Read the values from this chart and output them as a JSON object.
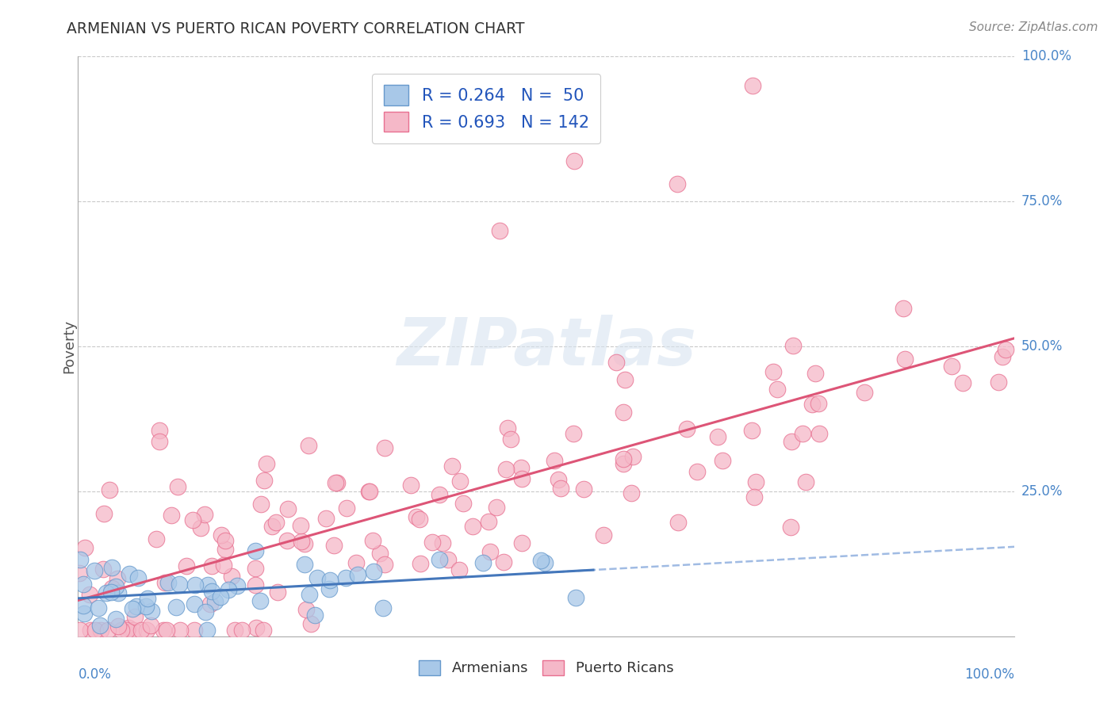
{
  "title": "ARMENIAN VS PUERTO RICAN POVERTY CORRELATION CHART",
  "source": "Source: ZipAtlas.com",
  "ylabel": "Poverty",
  "legend1_label": "R = 0.264   N =  50",
  "legend2_label": "R = 0.693   N = 142",
  "armenian_color": "#a8c8e8",
  "armenian_edge": "#6699cc",
  "puerto_rican_color": "#f5b8c8",
  "puerto_rican_edge": "#e87090",
  "line_armenian": "#4477bb",
  "line_armenian_dash": "#88aadd",
  "line_puerto_rican": "#dd5577",
  "watermark_text": "ZIPatlas",
  "background": "#ffffff",
  "grid_color": "#bbbbbb",
  "title_color": "#333333",
  "label_color": "#4a86c8",
  "source_color": "#888888"
}
